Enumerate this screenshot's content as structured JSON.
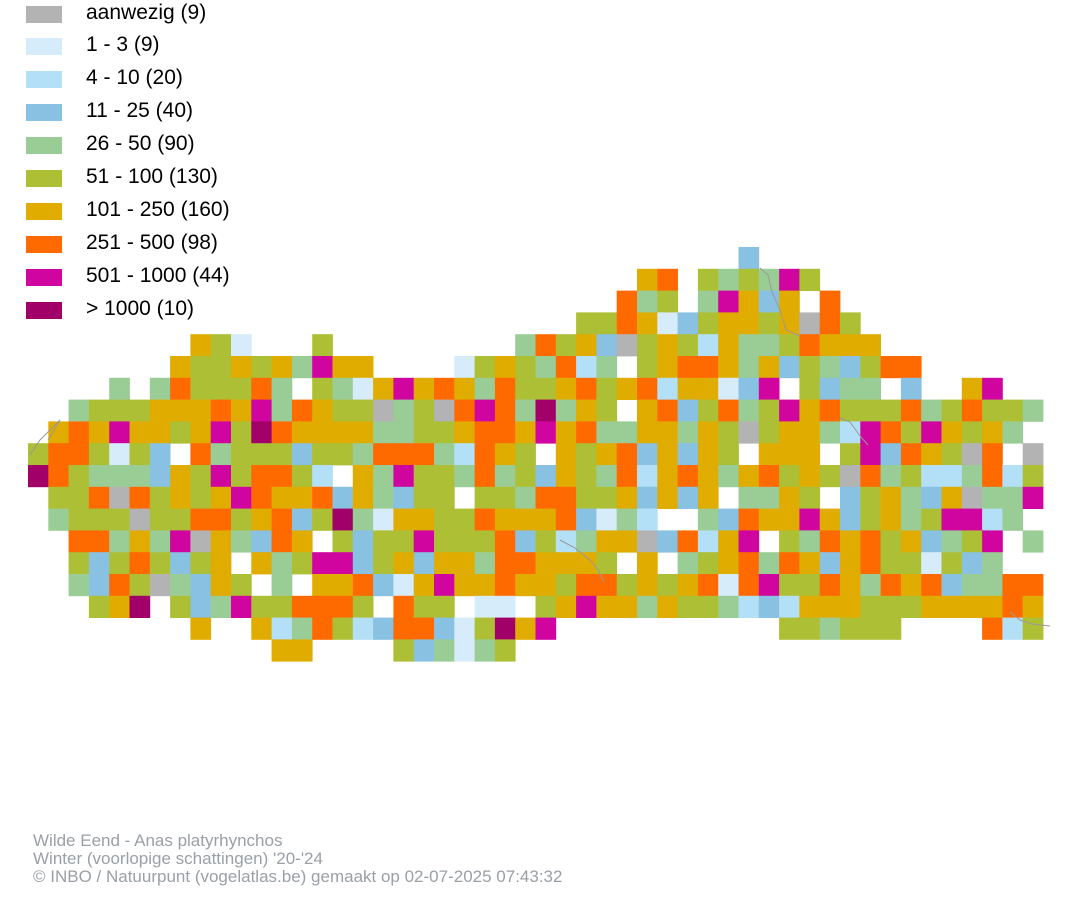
{
  "legend": {
    "items": [
      {
        "label": "aanwezig (9)",
        "color": "#b3b3b3"
      },
      {
        "label": "1 - 3 (9)",
        "color": "#d6ecfa"
      },
      {
        "label": "4 - 10 (20)",
        "color": "#b3e0f6"
      },
      {
        "label": "11 - 25 (40)",
        "color": "#88c1e2"
      },
      {
        "label": "26 - 50 (90)",
        "color": "#9acd95"
      },
      {
        "label": "51 - 100 (130)",
        "color": "#adbf34"
      },
      {
        "label": "101 - 250 (160)",
        "color": "#e0ac00"
      },
      {
        "label": "251 - 500 (98)",
        "color": "#ff6a00"
      },
      {
        "label": "501 - 1000 (44)",
        "color": "#d0059f"
      },
      {
        "label": "> 1000 (10)",
        "color": "#a00068"
      }
    ]
  },
  "footer": {
    "species": "Wilde Eend - Anas platyrhynchos",
    "season": "Winter (voorlopige schattingen) '20-'24",
    "credit": "© INBO / Natuurpunt (vogelatlas.be) gemaakt op 02-07-2025 07:43:32"
  }
}
